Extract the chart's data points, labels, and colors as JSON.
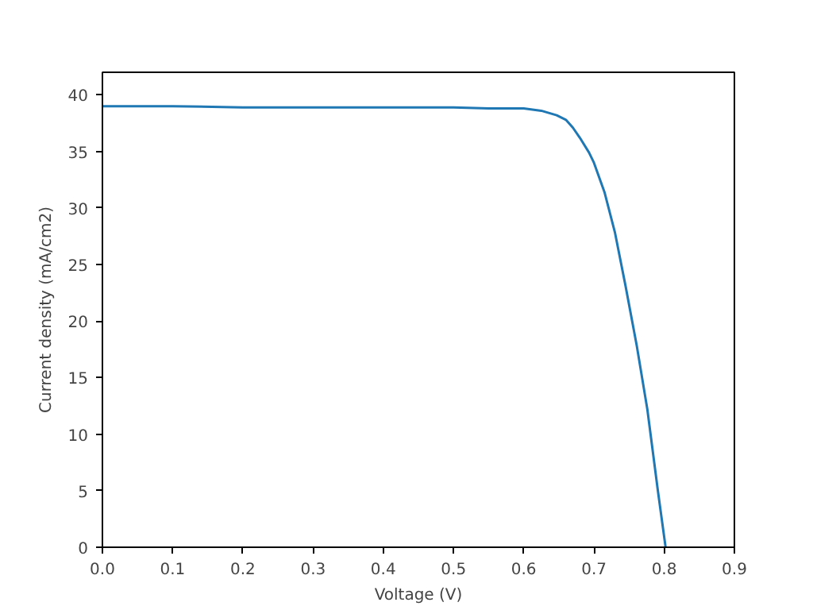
{
  "chart_data": {
    "type": "line",
    "xlabel": "Voltage (V)",
    "ylabel": "Current density (mA/cm2)",
    "x": [
      0,
      0.1,
      0.2,
      0.3,
      0.4,
      0.5,
      0.55,
      0.6,
      0.625,
      0.647,
      0.66,
      0.67,
      0.68,
      0.693,
      0.7,
      0.715,
      0.73,
      0.745,
      0.761,
      0.776,
      0.791,
      0.802
    ],
    "series": [
      {
        "color": "#1f77b4",
        "values": [
          39.0,
          39.0,
          38.9,
          38.9,
          38.9,
          38.9,
          38.8,
          38.8,
          38.6,
          38.2,
          37.8,
          37.1,
          36.2,
          34.9,
          34.0,
          31.4,
          27.8,
          23.1,
          17.8,
          12.2,
          5.0,
          0
        ]
      }
    ],
    "xlim": [
      0,
      0.9
    ],
    "ylim": [
      0,
      42
    ],
    "xticks": [
      {
        "value": 0,
        "label": "0.0"
      },
      {
        "value": 0.1,
        "label": "0.1"
      },
      {
        "value": 0.2,
        "label": "0.2"
      },
      {
        "value": 0.3,
        "label": "0.3"
      },
      {
        "value": 0.4,
        "label": "0.4"
      },
      {
        "value": 0.5,
        "label": "0.5"
      },
      {
        "value": 0.6,
        "label": "0.6"
      },
      {
        "value": 0.7,
        "label": "0.7"
      },
      {
        "value": 0.8,
        "label": "0.8"
      },
      {
        "value": 0.9,
        "label": "0.9"
      }
    ],
    "yticks": [
      0,
      5,
      10,
      15,
      20,
      25,
      30,
      35,
      40
    ]
  }
}
